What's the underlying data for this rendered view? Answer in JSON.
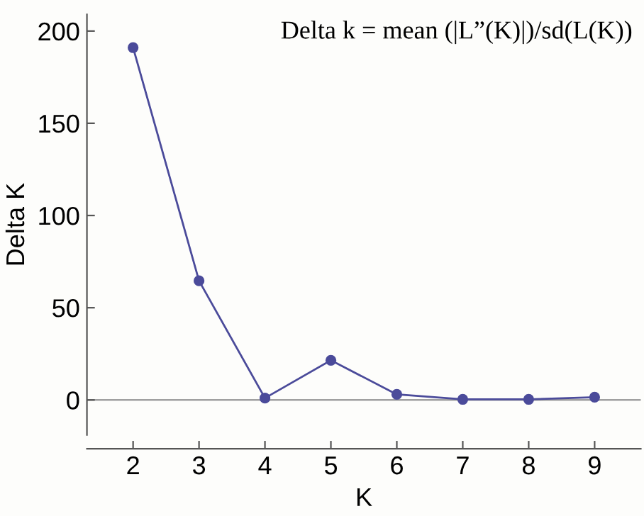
{
  "chart_data": {
    "type": "line",
    "title": "Delta k = mean (|L”(K)|)/sd(L(K))",
    "xlabel": "K",
    "ylabel": "Delta K",
    "x": [
      2,
      3,
      4,
      5,
      6,
      7,
      8,
      9
    ],
    "series": [
      {
        "color": "#4b4b9a",
        "values": [
          191,
          64.6,
          1,
          21.5,
          3,
          0.3,
          0.3,
          1.5
        ]
      }
    ],
    "xlim": [
      1.3,
      9.7
    ],
    "xticks": [
      2,
      3,
      4,
      5,
      6,
      7,
      8,
      9
    ],
    "ylim": [
      -19,
      209
    ],
    "yticks": [
      0,
      50,
      100,
      150,
      200
    ],
    "ref_lines": [
      {
        "axis": "y",
        "value": 0,
        "color": "#a0a0a0"
      }
    ],
    "marker": "circle",
    "line_style": "solid",
    "grid": false,
    "legend": false
  }
}
